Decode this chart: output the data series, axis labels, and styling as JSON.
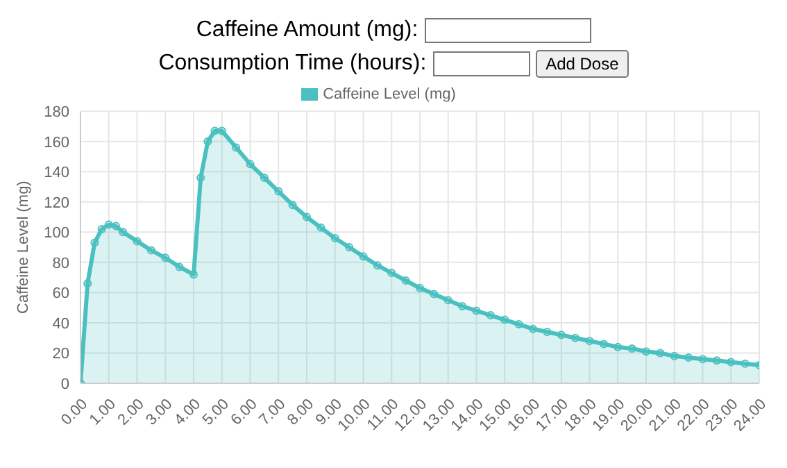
{
  "chart_data": {
    "type": "area",
    "ylabel": "Caffeine Level (mg)",
    "annotations": [
      "Caffeine Amount (mg):",
      "Consumption Time (hours):",
      "Add Dose"
    ],
    "x": [
      0,
      0.25,
      0.5,
      0.75,
      1,
      1.25,
      1.5,
      2,
      2.5,
      3,
      3.5,
      4,
      4.25,
      4.5,
      4.75,
      5,
      5.5,
      6,
      6.5,
      7,
      7.5,
      8,
      8.5,
      9,
      9.5,
      10,
      10.5,
      11,
      11.5,
      12,
      12.5,
      13,
      13.5,
      14,
      14.5,
      15,
      15.5,
      16,
      16.5,
      17,
      17.5,
      18,
      18.5,
      19,
      19.5,
      20,
      20.5,
      21,
      21.5,
      22,
      22.5,
      23,
      23.5,
      24
    ],
    "series": [
      {
        "name": "Caffeine Level (mg)",
        "color": "#4bc0c0",
        "values": [
          0,
          66,
          93,
          102,
          105,
          104,
          100,
          94,
          88,
          83,
          77,
          72,
          136,
          160,
          167,
          167,
          156,
          145,
          136,
          127,
          118,
          110,
          103,
          96,
          90,
          84,
          78,
          73,
          68,
          63,
          59,
          55,
          51,
          48,
          45,
          42,
          39,
          36,
          34,
          32,
          30,
          28,
          26,
          24,
          23,
          21,
          20,
          18,
          17,
          16,
          15,
          14,
          13,
          12
        ]
      }
    ],
    "xlim": [
      0,
      24
    ],
    "xticks": [
      {
        "value": 0,
        "label": "0.00"
      },
      {
        "value": 1,
        "label": "1.00"
      },
      {
        "value": 2,
        "label": "2.00"
      },
      {
        "value": 3,
        "label": "3.00"
      },
      {
        "value": 4,
        "label": "4.00"
      },
      {
        "value": 5,
        "label": "5.00"
      },
      {
        "value": 6,
        "label": "6.00"
      },
      {
        "value": 7,
        "label": "7.00"
      },
      {
        "value": 8,
        "label": "8.00"
      },
      {
        "value": 9,
        "label": "9.00"
      },
      {
        "value": 10,
        "label": "10.00"
      },
      {
        "value": 11,
        "label": "11.00"
      },
      {
        "value": 12,
        "label": "12.00"
      },
      {
        "value": 13,
        "label": "13.00"
      },
      {
        "value": 14,
        "label": "14.00"
      },
      {
        "value": 15,
        "label": "15.00"
      },
      {
        "value": 16,
        "label": "16.00"
      },
      {
        "value": 17,
        "label": "17.00"
      },
      {
        "value": 18,
        "label": "18.00"
      },
      {
        "value": 19,
        "label": "19.00"
      },
      {
        "value": 20,
        "label": "20.00"
      },
      {
        "value": 21,
        "label": "21.00"
      },
      {
        "value": 22,
        "label": "22.00"
      },
      {
        "value": 23,
        "label": "23.00"
      },
      {
        "value": 24,
        "label": "24.00"
      }
    ],
    "ylim": [
      0,
      180
    ],
    "yticks": [
      0,
      20,
      40,
      60,
      80,
      100,
      120,
      140,
      160,
      180
    ],
    "grid": true,
    "legend": "top",
    "marker": "circle"
  }
}
